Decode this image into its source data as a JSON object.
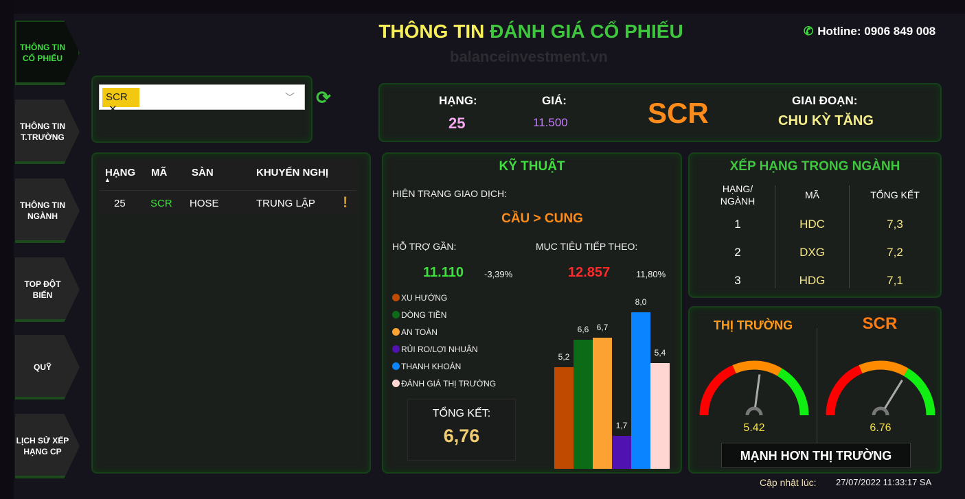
{
  "title": {
    "part1": "THÔNG TIN ",
    "part2": "ĐÁNH GIÁ CỔ PHIẾU"
  },
  "watermark": "balanceinvestment.vn",
  "hotline": "Hotline: 0906 849 008",
  "nav": [
    {
      "label": "THÔNG TIN CỔ PHIẾU",
      "active": true
    },
    {
      "label": "THÔNG TIN T.TRƯỜNG"
    },
    {
      "label": "THÔNG TIN NGÀNH"
    },
    {
      "label": "TOP ĐỘT BIẾN"
    },
    {
      "label": "QUỸ"
    },
    {
      "label": "LỊCH SỬ XẾP HẠNG CP"
    }
  ],
  "filter": {
    "selected": "SCR",
    "remove": "✕",
    "chevron": "﹀",
    "refresh": "⟳"
  },
  "summary": {
    "rank_label": "HẠNG:",
    "rank": "25",
    "price_label": "GIÁ:",
    "price": "11.500",
    "ticker": "SCR",
    "stage_label": "GIAI ĐOẠN:",
    "stage": "CHU KỲ TĂNG"
  },
  "table": {
    "headers": [
      "HẠNG",
      "MÃ",
      "SÀN",
      "KHUYẾN NGHỊ"
    ],
    "rows": [
      {
        "rank": "25",
        "code": "SCR",
        "exchange": "HOSE",
        "rec": "TRUNG LẬP",
        "flag": "!"
      }
    ]
  },
  "tech": {
    "title": "KỸ THUẬT",
    "status_label": "HIỆN TRẠNG GIAO DỊCH:",
    "status": "CẦU > CUNG",
    "support_label": "HỖ TRỢ GẦN:",
    "support": "11.110",
    "support_pct": "-3,39%",
    "target_label": "MỤC TIÊU TIẾP THEO:",
    "target": "12.857",
    "target_pct": "11,80%",
    "total_label": "TỔNG KẾT:",
    "total": "6,76"
  },
  "chart_data": {
    "type": "bar",
    "categories": [
      "XU HƯỚNG",
      "DÒNG TIỀN",
      "AN TOÀN",
      "RỦI RO/LỢI NHUẬN",
      "THANH KHOẢN",
      "ĐÁNH GIÁ THỊ TRƯỜNG"
    ],
    "values": [
      5.2,
      6.6,
      6.7,
      1.7,
      8.0,
      5.4
    ],
    "value_labels": [
      "5,2",
      "6,6",
      "6,7",
      "1,7",
      "8,0",
      "5,4"
    ],
    "colors": [
      "#c04a00",
      "#0b6b16",
      "#fba232",
      "#5012b0",
      "#0a84ff",
      "#ffd6d2"
    ],
    "legend": "left"
  },
  "ranking": {
    "title": "XẾP HẠNG TRONG NGÀNH",
    "headers": [
      "HẠNG/ NGÀNH",
      "MÃ",
      "TỔNG KẾT"
    ],
    "rows": [
      {
        "rank": "1",
        "code": "HDC",
        "score": "7,3"
      },
      {
        "rank": "2",
        "code": "DXG",
        "score": "7,2"
      },
      {
        "rank": "3",
        "code": "HDG",
        "score": "7,1"
      }
    ]
  },
  "gauges": {
    "items": [
      {
        "label": "THỊ TRƯỜNG",
        "value": 5.42,
        "text": "5.42"
      },
      {
        "label": "SCR",
        "value": 6.76,
        "text": "6.76"
      }
    ],
    "range": [
      0,
      10
    ],
    "verdict": "MẠNH HƠN THỊ TRƯỜNG"
  },
  "update": {
    "label": "Cập nhật lúc:",
    "time": "27/07/2022 11:33:17 SA"
  }
}
